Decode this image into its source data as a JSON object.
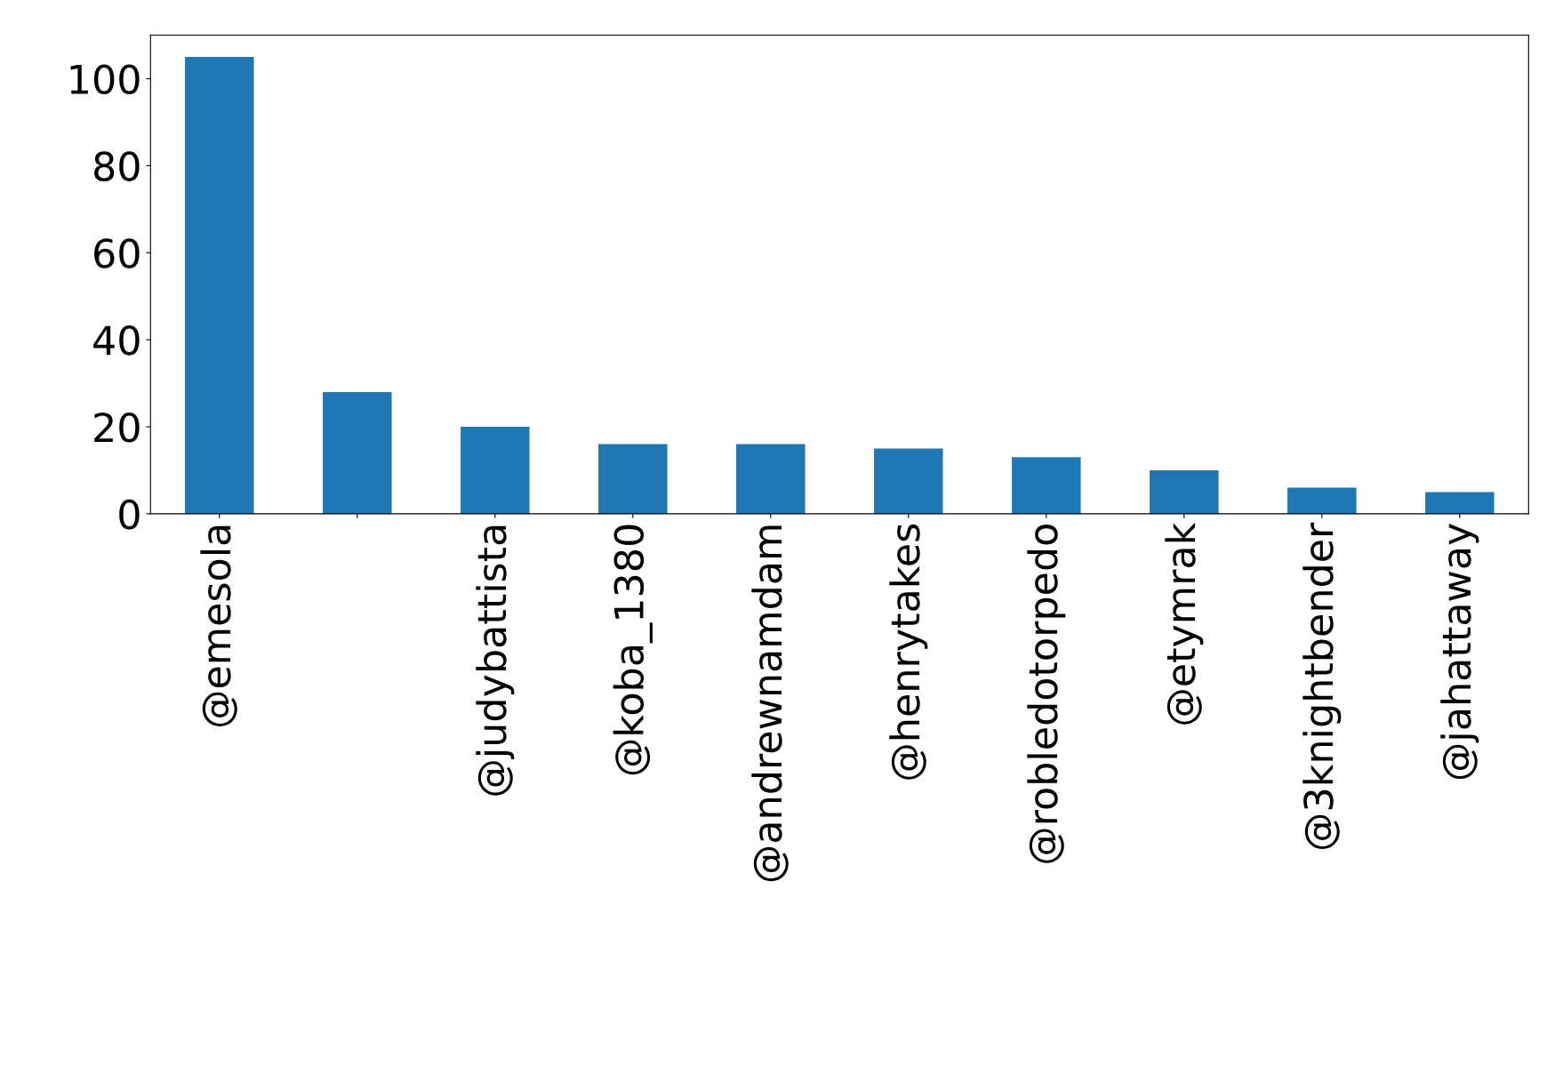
{
  "chart_data": {
    "type": "bar",
    "categories": [
      "@emesola",
      null,
      "@judybattista",
      "@koba_1380",
      "@andrewnamdam",
      "@henrytakes",
      "@robledotorpedo",
      "@etymrak",
      "@3knightbender",
      "@jahattaway"
    ],
    "values": [
      105,
      28,
      20,
      16,
      16,
      15,
      13,
      10,
      6,
      5
    ],
    "color": "#1f77b4",
    "ylim": [
      0,
      110
    ],
    "yticks": [
      0,
      20,
      40,
      60,
      80,
      100
    ],
    "grid": false,
    "legend": false
  }
}
